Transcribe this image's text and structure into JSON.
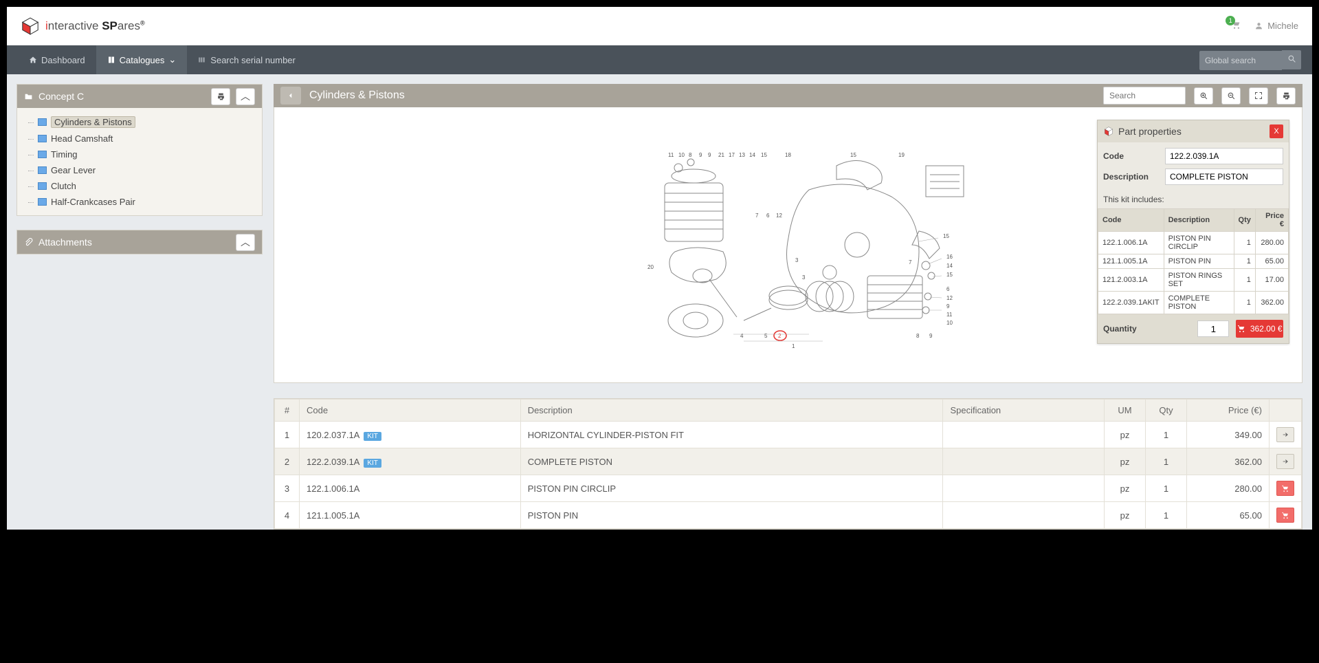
{
  "brand": {
    "i": "i",
    "nter": "nteractive ",
    "sp": "SP",
    "ares": "ares",
    "reg": "®"
  },
  "topbar": {
    "cart_count": "1",
    "user": "Michele"
  },
  "menu": {
    "dashboard": "Dashboard",
    "catalogues": "Catalogues",
    "serial": "Search serial number",
    "global_ph": "Global search"
  },
  "left": {
    "category": "Concept C",
    "items": [
      "Cylinders & Pistons",
      "Head Camshaft",
      "Timing",
      "Gear Lever",
      "Clutch",
      "Half-Crankcases Pair"
    ],
    "attachments": "Attachments"
  },
  "right": {
    "title": "Cylinders & Pistons",
    "search_ph": "Search"
  },
  "props": {
    "title": "Part properties",
    "code_lbl": "Code",
    "code": "122.2.039.1A",
    "desc_lbl": "Description",
    "desc": "COMPLETE PISTON",
    "includes": "This kit includes:",
    "th": [
      "Code",
      "Description",
      "Qty",
      "Price €"
    ],
    "rows": [
      {
        "c": "122.1.006.1A",
        "d": "PISTON PIN CIRCLIP",
        "q": "1",
        "p": "280.00"
      },
      {
        "c": "121.1.005.1A",
        "d": "PISTON PIN",
        "q": "1",
        "p": "65.00"
      },
      {
        "c": "121.2.003.1A",
        "d": "PISTON RINGS SET",
        "q": "1",
        "p": "17.00"
      },
      {
        "c": "122.2.039.1AKIT",
        "d": "COMPLETE PISTON",
        "q": "1",
        "p": "362.00"
      }
    ],
    "qty_lbl": "Quantity",
    "qty": "1",
    "btn": "362.00 €"
  },
  "table": {
    "th": {
      "n": "#",
      "code": "Code",
      "desc": "Description",
      "spec": "Specification",
      "um": "UM",
      "qty": "Qty",
      "price": "Price (€)"
    },
    "rows": [
      {
        "n": "1",
        "code": "120.2.037.1A",
        "kit": "KIT",
        "desc": "HORIZONTAL CYLINDER-PISTON FIT",
        "um": "pz",
        "qty": "1",
        "price": "349.00",
        "act": "arrow"
      },
      {
        "n": "2",
        "code": "122.2.039.1A",
        "kit": "KIT",
        "desc": "COMPLETE PISTON",
        "um": "pz",
        "qty": "1",
        "price": "362.00",
        "act": "arrow",
        "sel": true
      },
      {
        "n": "3",
        "code": "122.1.006.1A",
        "desc": "PISTON PIN CIRCLIP",
        "um": "pz",
        "qty": "1",
        "price": "280.00",
        "act": "cart"
      },
      {
        "n": "4",
        "code": "121.1.005.1A",
        "desc": "PISTON PIN",
        "um": "pz",
        "qty": "1",
        "price": "65.00",
        "act": "cart"
      }
    ]
  }
}
